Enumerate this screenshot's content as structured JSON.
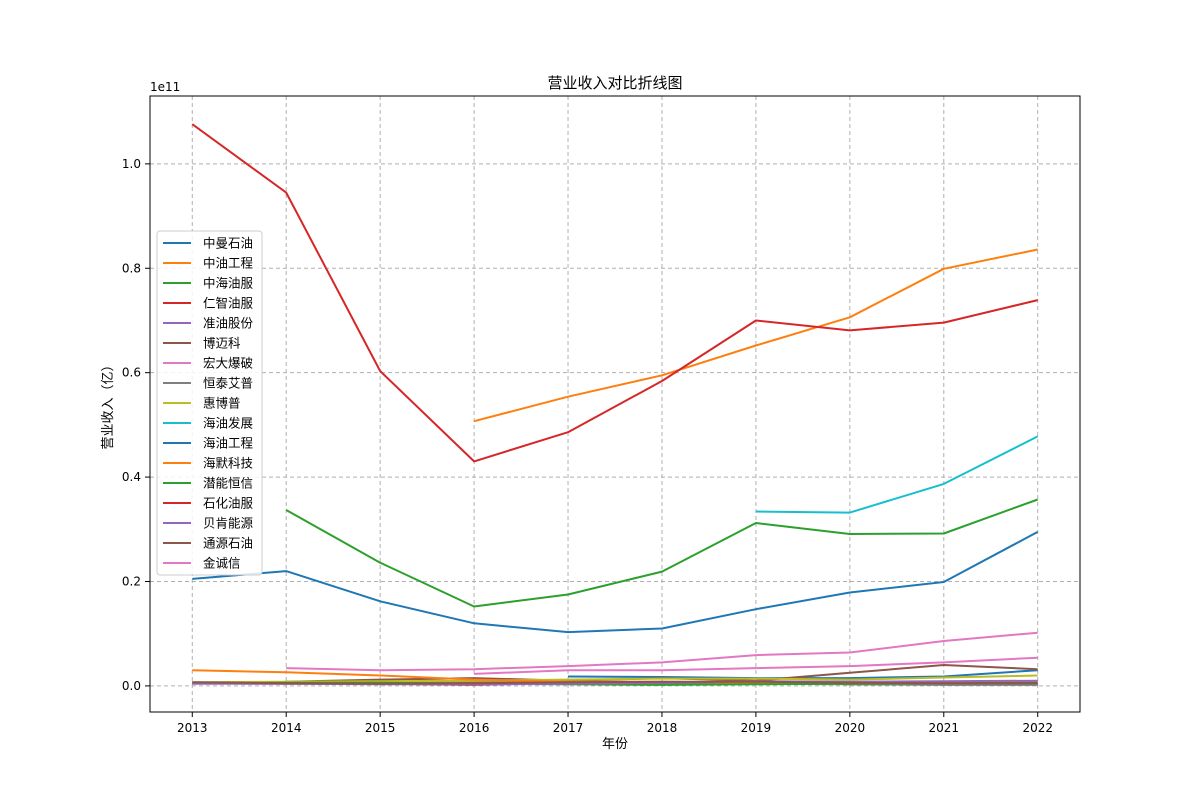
{
  "chart_data": {
    "type": "line",
    "title": "营业收入对比折线图",
    "xlabel": "年份",
    "ylabel": "营业收入（亿）",
    "y_scale_label": "1e11",
    "x": [
      2013,
      2014,
      2015,
      2016,
      2017,
      2018,
      2019,
      2020,
      2021,
      2022
    ],
    "xlim": [
      2012.55,
      2022.45
    ],
    "ylim": [
      -0.05,
      1.13
    ],
    "y_ticks": [
      0.0,
      0.2,
      0.4,
      0.6,
      0.8,
      1.0
    ],
    "y_tick_labels": [
      "0.0",
      "0.2",
      "0.4",
      "0.6",
      "0.8",
      "1.0"
    ],
    "grid": true,
    "legend_position": "center-left",
    "legend_entries": [
      "中曼石油",
      "中油工程",
      "中海油服",
      "仁智油服",
      "准油股份",
      "博迈科",
      "宏大爆破",
      "恒泰艾普",
      "惠博普",
      "海油发展",
      "海油工程",
      "海默科技",
      "潜能恒信",
      "石化油服",
      "贝肯能源",
      "通源石油",
      "金诚信"
    ],
    "series": [
      {
        "color": "#1f77b4",
        "values": [
          null,
          null,
          null,
          null,
          0.018,
          0.017,
          0.015,
          0.015,
          0.018,
          0.03
        ]
      },
      {
        "color": "#ff7f0e",
        "values": [
          null,
          null,
          null,
          0.507,
          0.554,
          0.595,
          0.652,
          0.706,
          0.799,
          0.836
        ]
      },
      {
        "color": "#2ca02c",
        "values": [
          null,
          0.337,
          0.236,
          0.152,
          0.175,
          0.219,
          0.312,
          0.291,
          0.292,
          0.357
        ]
      },
      {
        "color": "#d62728",
        "values": [
          0.005,
          0.004,
          0.004,
          0.002,
          0.006,
          0.007,
          0.008,
          0.003,
          0.003,
          0.004
        ]
      },
      {
        "color": "#9467bd",
        "values": [
          0.006,
          0.005,
          0.004,
          0.003,
          0.004,
          0.005,
          0.005,
          0.004,
          0.004,
          0.005
        ]
      },
      {
        "color": "#8c564b",
        "values": [
          null,
          0.008,
          0.012,
          0.015,
          0.01,
          0.015,
          0.01,
          0.025,
          0.04,
          0.032
        ]
      },
      {
        "color": "#e377c2",
        "values": [
          null,
          0.034,
          0.03,
          0.032,
          0.038,
          0.045,
          0.059,
          0.064,
          0.086,
          0.102
        ]
      },
      {
        "color": "#7f7f7f",
        "values": [
          0.006,
          0.007,
          0.008,
          0.007,
          0.006,
          0.005,
          0.004,
          0.003,
          0.002,
          0.002
        ]
      },
      {
        "color": "#bcbd22",
        "values": [
          0.007,
          0.008,
          0.009,
          0.01,
          0.012,
          0.014,
          0.014,
          0.012,
          0.016,
          0.02
        ]
      },
      {
        "color": "#17becf",
        "values": [
          null,
          null,
          null,
          null,
          null,
          null,
          0.334,
          0.332,
          0.387,
          0.478
        ]
      },
      {
        "color": "#1f77b4",
        "values": [
          0.205,
          0.22,
          0.162,
          0.12,
          0.103,
          0.11,
          0.147,
          0.179,
          0.199,
          0.295
        ]
      },
      {
        "color": "#ff7f0e",
        "values": [
          0.03,
          0.026,
          0.02,
          0.012,
          0.008,
          0.008,
          0.006,
          0.005,
          0.006,
          0.007
        ]
      },
      {
        "color": "#2ca02c",
        "values": [
          0.005,
          0.006,
          0.006,
          0.004,
          0.003,
          0.002,
          0.003,
          0.004,
          0.005,
          0.006
        ]
      },
      {
        "color": "#d62728",
        "values": [
          1.076,
          0.945,
          0.603,
          0.43,
          0.486,
          0.584,
          0.7,
          0.681,
          0.696,
          0.739
        ]
      },
      {
        "color": "#9467bd",
        "values": [
          0.004,
          0.004,
          0.003,
          0.003,
          0.004,
          0.006,
          0.009,
          0.008,
          0.009,
          0.01
        ]
      },
      {
        "color": "#8c564b",
        "values": [
          0.007,
          0.005,
          0.004,
          0.005,
          0.007,
          0.008,
          0.008,
          0.006,
          0.005,
          0.005
        ]
      },
      {
        "color": "#e377c2",
        "values": [
          null,
          null,
          null,
          0.023,
          0.03,
          0.03,
          0.034,
          0.038,
          0.045,
          0.054
        ]
      }
    ]
  }
}
